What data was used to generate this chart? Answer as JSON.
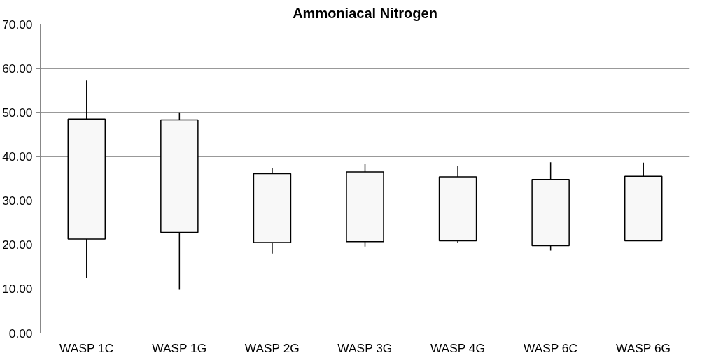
{
  "chart_data": {
    "type": "candlestick",
    "title": "Ammoniacal Nitrogen",
    "categories": [
      "WASP 1C",
      "WASP 1G",
      "WASP 2G",
      "WASP 3G",
      "WASP 4G",
      "WASP 6C",
      "WASP 6G"
    ],
    "ohlc": [
      [
        21.3,
        57.2,
        12.6,
        48.5
      ],
      [
        22.8,
        50.0,
        9.8,
        48.3
      ],
      [
        20.5,
        37.4,
        18.0,
        36.1
      ],
      [
        20.7,
        38.4,
        19.6,
        36.5
      ],
      [
        20.9,
        37.9,
        20.5,
        35.4
      ],
      [
        19.8,
        38.7,
        18.7,
        34.8
      ],
      [
        20.9,
        38.6,
        20.9,
        35.5
      ]
    ],
    "color": "#f8f8f8",
    "ylim": [
      0,
      70
    ],
    "yticks": [
      {
        "value": 0,
        "label": "0.00"
      },
      {
        "value": 10,
        "label": "10.00"
      },
      {
        "value": 20,
        "label": "20.00"
      },
      {
        "value": 30,
        "label": "30.00"
      },
      {
        "value": 40,
        "label": "40.00"
      },
      {
        "value": 50,
        "label": "50.00"
      },
      {
        "value": 60,
        "label": "60.00"
      },
      {
        "value": 70,
        "label": "70.00"
      }
    ],
    "grid": "y"
  }
}
